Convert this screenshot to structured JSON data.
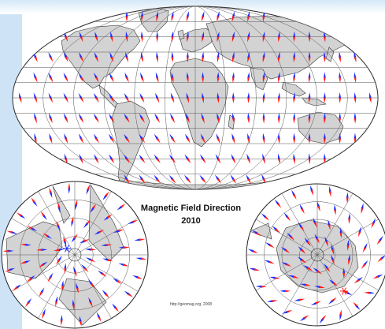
{
  "map": {
    "title": "Magnetic Field Direction",
    "year": "2010",
    "credit": "http://geomag.org, 2008",
    "colors": {
      "arrow_north": "#1f2bff",
      "arrow_south": "#ff1a1a",
      "land": "#d3d3d3",
      "grid": "#555555",
      "ocean": "#ffffff",
      "pole_marker_north": "#1f2bff",
      "pole_marker_south": "#ff1a1a"
    },
    "panels": [
      "world-mollweide",
      "north-polar",
      "south-polar"
    ]
  }
}
